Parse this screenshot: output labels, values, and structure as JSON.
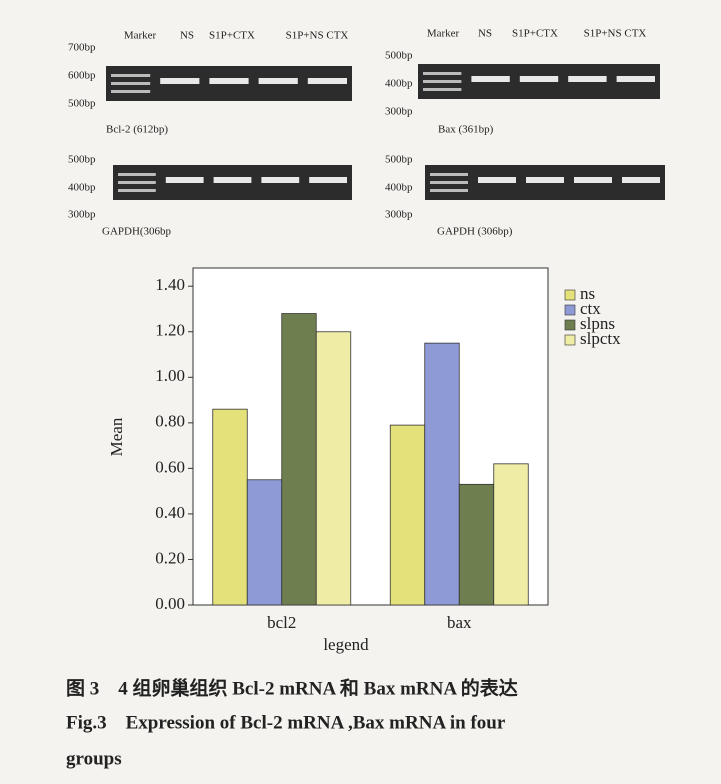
{
  "gels": [
    {
      "lanes": [
        "Marker",
        "NS",
        "S1P+CTX",
        "S1P+NS CTX"
      ],
      "ladder": [
        "700bp",
        "600bp",
        "500bp"
      ],
      "label": "Bcl-2 (612bp)"
    },
    {
      "ladder": [
        "500bp",
        "400bp",
        "300bp"
      ],
      "label": "GAPDH(306bp"
    },
    {
      "lanes": [
        "Marker",
        "NS",
        "S1P+CTX",
        "S1P+NS CTX"
      ],
      "ladder": [
        "500bp",
        "400bp",
        "300bp"
      ],
      "label": "Bax (361bp)"
    },
    {
      "ladder": [
        "500bp",
        "400bp",
        "300bp"
      ],
      "label": "GAPDH (306bp)"
    }
  ],
  "chart_data": {
    "type": "bar",
    "xlabel": "legend",
    "ylabel": "Mean",
    "categories": [
      "bcl2",
      "bax"
    ],
    "series": [
      {
        "name": "ns",
        "color": "#e4e07a",
        "values": [
          0.86,
          0.79
        ]
      },
      {
        "name": "ctx",
        "color": "#8d9ad6",
        "values": [
          0.55,
          1.15
        ]
      },
      {
        "name": "slpns",
        "color": "#6e7e4e",
        "values": [
          1.28,
          0.53
        ]
      },
      {
        "name": "slpctx",
        "color": "#efeca6",
        "values": [
          1.2,
          0.62
        ]
      }
    ],
    "ylim": [
      0,
      1.48
    ],
    "yticks": [
      {
        "value": 0,
        "label": "0.00"
      },
      {
        "value": 0.2,
        "label": "0.20"
      },
      {
        "value": 0.4,
        "label": "0.40"
      },
      {
        "value": 0.6,
        "label": "0.60"
      },
      {
        "value": 0.8,
        "label": "0.80"
      },
      {
        "value": 1.0,
        "label": "1.00"
      },
      {
        "value": 1.2,
        "label": "1.20"
      },
      {
        "value": 1.4,
        "label": "1.40"
      }
    ],
    "legend": "right"
  },
  "caption": {
    "cn": "图 3　4 组卵巢组织 Bcl-2 mRNA 和 Bax mRNA 的表达",
    "en": [
      "Fig.3　Expression of Bcl-2 mRNA ,Bax mRNA in four",
      "groups"
    ]
  }
}
